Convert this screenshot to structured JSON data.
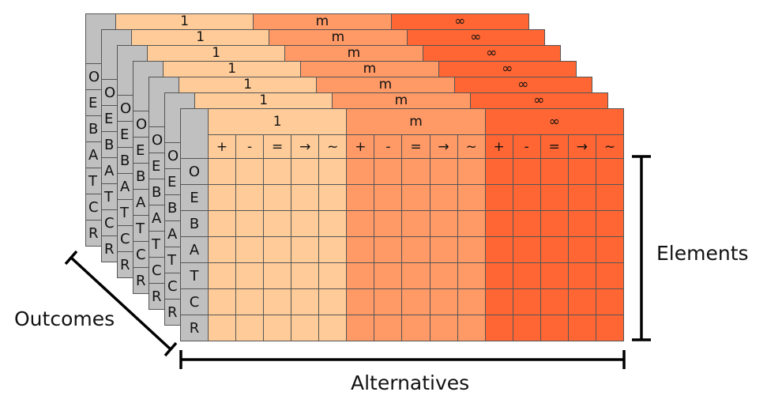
{
  "colors": {
    "gray": "#c0c0c0",
    "group_1": "#ffcc99",
    "group_m": "#ff9966",
    "group_inf": "#ff6633"
  },
  "groups": [
    {
      "label": "1",
      "color": "#ffcc99"
    },
    {
      "label": "m",
      "color": "#ff9966"
    },
    {
      "label": "∞",
      "color": "#ff6633"
    }
  ],
  "symbols": [
    "+",
    "-",
    "=",
    "→",
    "~"
  ],
  "rows": [
    "O",
    "E",
    "B",
    "A",
    "T",
    "C",
    "R"
  ],
  "layer_count": 7,
  "axes": {
    "elements": "Elements",
    "alternatives": "Alternatives",
    "outcomes": "Outcomes"
  }
}
